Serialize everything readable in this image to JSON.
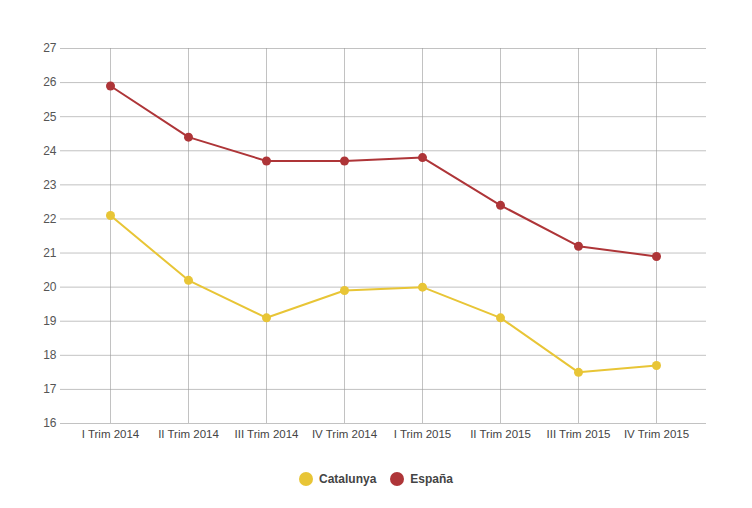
{
  "chart_data": {
    "type": "line",
    "categories": [
      "I Trim 2014",
      "II Trim 2014",
      "III Trim 2014",
      "IV Trim 2014",
      "I Trim 2015",
      "II Trim 2015",
      "III Trim 2015",
      "IV Trim 2015"
    ],
    "series": [
      {
        "name": "Catalunya",
        "color": "#e8c536",
        "marker": "circle",
        "values": [
          22.1,
          20.2,
          19.1,
          19.9,
          20.0,
          19.1,
          17.5,
          17.7
        ]
      },
      {
        "name": "España",
        "color": "#ae3538",
        "marker": "circle",
        "values": [
          25.9,
          24.4,
          23.7,
          23.7,
          23.8,
          22.4,
          21.2,
          20.9
        ]
      }
    ],
    "ylim": [
      16,
      27
    ],
    "yticks": [
      16,
      17,
      18,
      19,
      20,
      21,
      22,
      23,
      24,
      25,
      26,
      27
    ],
    "grid": true,
    "legend": "bottom"
  }
}
